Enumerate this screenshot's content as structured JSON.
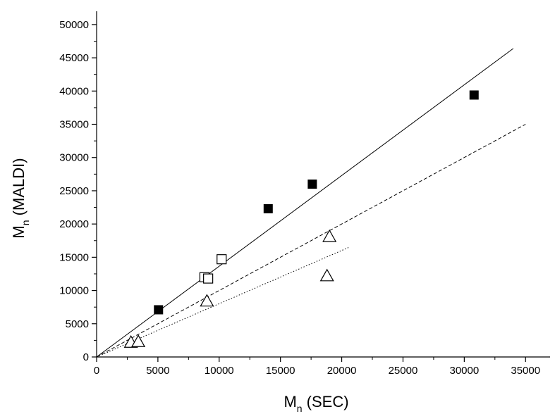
{
  "chart_data": {
    "type": "scatter",
    "xlabel": {
      "main": "M",
      "subscript": "n",
      "rest": " (SEC)"
    },
    "ylabel": {
      "main": "M",
      "subscript": "n",
      "rest": " (MALDI)"
    },
    "xlim": [
      0,
      37000
    ],
    "ylim": [
      0,
      52000
    ],
    "x_ticks": [
      0,
      5000,
      10000,
      15000,
      20000,
      25000,
      30000,
      35000
    ],
    "y_ticks": [
      0,
      5000,
      10000,
      15000,
      20000,
      25000,
      30000,
      35000,
      40000,
      45000,
      50000
    ],
    "x_tick_labels": [
      "0",
      "5000",
      "10000",
      "15000",
      "20000",
      "25000",
      "30000",
      "35000"
    ],
    "y_tick_labels": [
      "0",
      "5000",
      "10000",
      "15000",
      "20000",
      "25000",
      "30000",
      "35000",
      "40000",
      "45000",
      "50000"
    ],
    "grid": false,
    "series": [
      {
        "marker": "filled-square",
        "color": "#000000",
        "points": [
          [
            5050,
            7100
          ],
          [
            14000,
            22300
          ],
          [
            17600,
            26000
          ],
          [
            30800,
            39400
          ]
        ]
      },
      {
        "marker": "open-square",
        "color": "#000000",
        "points": [
          [
            8800,
            12000
          ],
          [
            9100,
            11800
          ],
          [
            10200,
            14700
          ]
        ]
      },
      {
        "marker": "open-triangle",
        "color": "#000000",
        "points": [
          [
            2800,
            2200
          ],
          [
            3400,
            2300
          ],
          [
            9000,
            8400
          ],
          [
            18800,
            12200
          ],
          [
            19000,
            18100
          ]
        ]
      }
    ],
    "fit_lines": [
      {
        "style": "solid",
        "x": [
          0,
          34000
        ],
        "y": [
          0,
          46400
        ]
      },
      {
        "style": "dashed",
        "x": [
          0,
          35000
        ],
        "y": [
          0,
          35000
        ]
      },
      {
        "style": "dotted",
        "x": [
          0,
          20600
        ],
        "y": [
          0,
          16500
        ]
      }
    ]
  }
}
